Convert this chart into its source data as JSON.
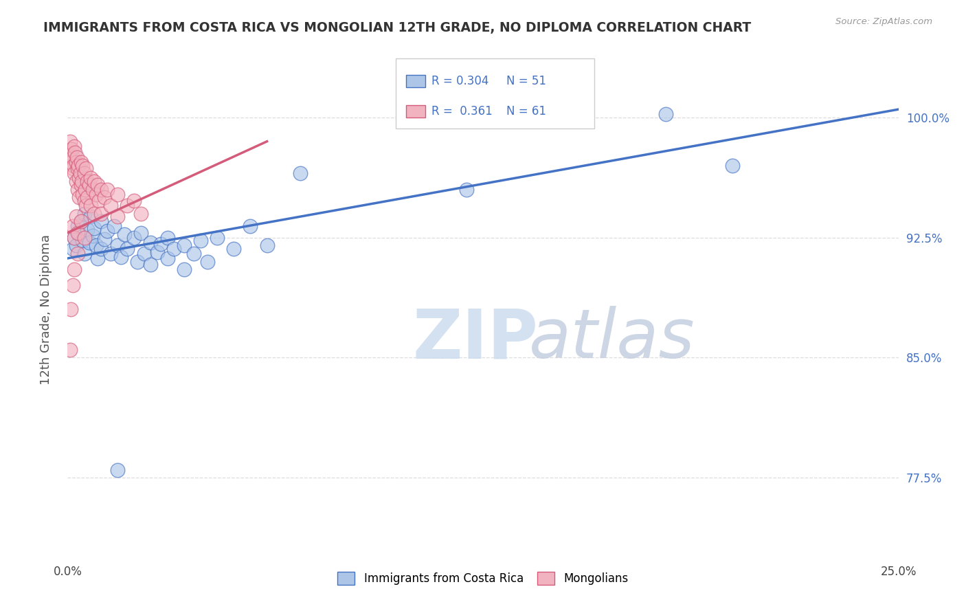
{
  "title": "IMMIGRANTS FROM COSTA RICA VS MONGOLIAN 12TH GRADE, NO DIPLOMA CORRELATION CHART",
  "source": "Source: ZipAtlas.com",
  "ylabel": "12th Grade, No Diploma",
  "ylabel_tick_values": [
    77.5,
    85.0,
    92.5,
    100.0
  ],
  "xlim": [
    0.0,
    25.0
  ],
  "ylim": [
    72.5,
    103.5
  ],
  "legend_blue_r": "0.304",
  "legend_blue_n": "51",
  "legend_pink_r": "0.361",
  "legend_pink_n": "61",
  "label_blue": "Immigrants from Costa Rica",
  "label_pink": "Mongolians",
  "blue_color": "#adc6e8",
  "pink_color": "#f2b3c0",
  "trendline_blue": "#4472c4",
  "trendline_pink": "#d45b7a",
  "blue_scatter": [
    [
      0.15,
      91.8
    ],
    [
      0.2,
      92.5
    ],
    [
      0.25,
      92.0
    ],
    [
      0.3,
      93.2
    ],
    [
      0.35,
      92.8
    ],
    [
      0.4,
      93.5
    ],
    [
      0.45,
      92.3
    ],
    [
      0.5,
      94.0
    ],
    [
      0.5,
      91.5
    ],
    [
      0.6,
      93.0
    ],
    [
      0.65,
      92.2
    ],
    [
      0.7,
      93.8
    ],
    [
      0.75,
      92.6
    ],
    [
      0.8,
      93.1
    ],
    [
      0.85,
      92.0
    ],
    [
      0.9,
      91.2
    ],
    [
      1.0,
      93.5
    ],
    [
      1.0,
      91.8
    ],
    [
      1.1,
      92.4
    ],
    [
      1.2,
      92.9
    ],
    [
      1.3,
      91.5
    ],
    [
      1.4,
      93.2
    ],
    [
      1.5,
      92.0
    ],
    [
      1.6,
      91.3
    ],
    [
      1.7,
      92.7
    ],
    [
      1.8,
      91.8
    ],
    [
      2.0,
      92.5
    ],
    [
      2.1,
      91.0
    ],
    [
      2.2,
      92.8
    ],
    [
      2.3,
      91.5
    ],
    [
      2.5,
      92.2
    ],
    [
      2.5,
      90.8
    ],
    [
      2.7,
      91.6
    ],
    [
      2.8,
      92.1
    ],
    [
      3.0,
      92.5
    ],
    [
      3.0,
      91.2
    ],
    [
      3.2,
      91.8
    ],
    [
      3.5,
      92.0
    ],
    [
      3.5,
      90.5
    ],
    [
      3.8,
      91.5
    ],
    [
      4.0,
      92.3
    ],
    [
      4.2,
      91.0
    ],
    [
      4.5,
      92.5
    ],
    [
      5.0,
      91.8
    ],
    [
      5.5,
      93.2
    ],
    [
      6.0,
      92.0
    ],
    [
      7.0,
      96.5
    ],
    [
      12.0,
      95.5
    ],
    [
      18.0,
      100.2
    ],
    [
      20.0,
      97.0
    ],
    [
      1.5,
      78.0
    ]
  ],
  "pink_scatter": [
    [
      0.05,
      97.8
    ],
    [
      0.08,
      98.5
    ],
    [
      0.1,
      97.2
    ],
    [
      0.12,
      98.0
    ],
    [
      0.15,
      97.5
    ],
    [
      0.15,
      96.8
    ],
    [
      0.18,
      97.0
    ],
    [
      0.2,
      98.2
    ],
    [
      0.2,
      96.5
    ],
    [
      0.22,
      97.8
    ],
    [
      0.25,
      97.2
    ],
    [
      0.25,
      96.0
    ],
    [
      0.28,
      97.5
    ],
    [
      0.3,
      96.8
    ],
    [
      0.3,
      95.5
    ],
    [
      0.32,
      97.0
    ],
    [
      0.35,
      96.2
    ],
    [
      0.35,
      95.0
    ],
    [
      0.38,
      96.5
    ],
    [
      0.4,
      97.2
    ],
    [
      0.4,
      95.8
    ],
    [
      0.42,
      96.0
    ],
    [
      0.45,
      97.0
    ],
    [
      0.45,
      95.2
    ],
    [
      0.5,
      96.5
    ],
    [
      0.5,
      94.8
    ],
    [
      0.52,
      95.5
    ],
    [
      0.55,
      96.8
    ],
    [
      0.55,
      94.5
    ],
    [
      0.6,
      96.0
    ],
    [
      0.6,
      95.0
    ],
    [
      0.65,
      95.8
    ],
    [
      0.7,
      96.2
    ],
    [
      0.7,
      94.5
    ],
    [
      0.75,
      95.5
    ],
    [
      0.8,
      96.0
    ],
    [
      0.8,
      94.0
    ],
    [
      0.85,
      95.2
    ],
    [
      0.9,
      95.8
    ],
    [
      0.95,
      94.8
    ],
    [
      1.0,
      95.5
    ],
    [
      1.0,
      94.0
    ],
    [
      1.1,
      95.0
    ],
    [
      1.2,
      95.5
    ],
    [
      1.3,
      94.5
    ],
    [
      1.5,
      95.2
    ],
    [
      1.5,
      93.8
    ],
    [
      1.8,
      94.5
    ],
    [
      2.0,
      94.8
    ],
    [
      2.2,
      94.0
    ],
    [
      0.15,
      93.2
    ],
    [
      0.2,
      92.5
    ],
    [
      0.25,
      93.8
    ],
    [
      0.3,
      92.8
    ],
    [
      0.4,
      93.5
    ],
    [
      0.5,
      92.5
    ],
    [
      0.3,
      91.5
    ],
    [
      0.2,
      90.5
    ],
    [
      0.15,
      89.5
    ],
    [
      0.1,
      88.0
    ],
    [
      0.08,
      85.5
    ]
  ],
  "blue_trendline_x": [
    0.0,
    25.0
  ],
  "blue_trendline_y": [
    91.2,
    100.5
  ],
  "pink_trendline_x": [
    0.0,
    6.0
  ],
  "pink_trendline_y": [
    92.8,
    98.5
  ],
  "background_color": "#ffffff",
  "grid_color": "#dddddd",
  "title_color": "#333333",
  "axis_label_color": "#555555"
}
